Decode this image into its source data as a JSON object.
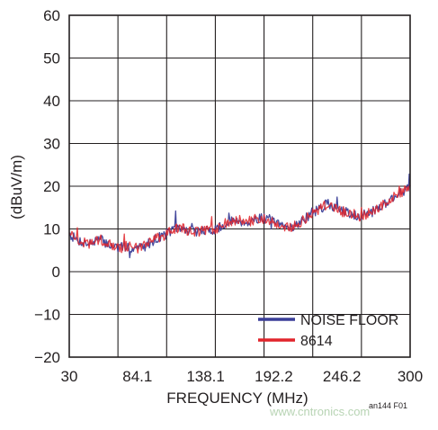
{
  "chart_data": {
    "type": "line",
    "xlabel": "FREQUENCY (MHz)",
    "ylabel": "(dBuV/m)",
    "x_ticks": [
      "30",
      "84.1",
      "138.1",
      "192.2",
      "246.2",
      "300"
    ],
    "y_ticks": [
      "60",
      "50",
      "40",
      "30",
      "20",
      "10",
      "0",
      "−10",
      "−20"
    ],
    "xlim": [
      30,
      300
    ],
    "ylim": [
      -20,
      60
    ],
    "grid": true,
    "legend_position": "bottom-right",
    "series": [
      {
        "name": "NOISE FLOOR",
        "color": "#3b3f98",
        "x": [
          30,
          35,
          40,
          45,
          50,
          55,
          60,
          65,
          70,
          75,
          80,
          85,
          90,
          95,
          100,
          105,
          110,
          115,
          120,
          125,
          130,
          135,
          140,
          145,
          150,
          155,
          160,
          165,
          170,
          175,
          180,
          185,
          190,
          195,
          200,
          205,
          210,
          215,
          220,
          225,
          230,
          235,
          240,
          245,
          250,
          255,
          260,
          265,
          270,
          275,
          280,
          285,
          290,
          295,
          300
        ],
        "y": [
          9,
          7.5,
          7,
          6.5,
          7,
          7.5,
          6.5,
          6,
          5.5,
          6,
          5.5,
          5.5,
          6,
          7,
          8,
          8.5,
          9.5,
          10,
          10,
          9.5,
          9.5,
          9.5,
          9.5,
          10,
          10.5,
          11,
          12,
          12,
          11.5,
          12,
          12.5,
          12.5,
          12,
          11,
          10.5,
          10.5,
          11,
          12,
          13,
          14,
          15,
          16,
          15,
          14,
          14,
          13.5,
          13,
          13.5,
          14,
          15,
          16,
          17,
          18,
          19,
          20
        ]
      },
      {
        "name": "8614",
        "color": "#e1242b",
        "x": [
          30,
          35,
          40,
          45,
          50,
          55,
          60,
          65,
          70,
          75,
          80,
          85,
          90,
          95,
          100,
          105,
          110,
          115,
          120,
          125,
          130,
          135,
          140,
          145,
          150,
          155,
          160,
          165,
          170,
          175,
          180,
          185,
          190,
          195,
          200,
          205,
          210,
          215,
          220,
          225,
          230,
          235,
          240,
          245,
          250,
          255,
          260,
          265,
          270,
          275,
          280,
          285,
          290,
          295,
          300
        ],
        "y": [
          9.5,
          7.5,
          7,
          6.5,
          7,
          7.5,
          6.5,
          6,
          5.5,
          6,
          6,
          5.5,
          6,
          7,
          8,
          8.5,
          9.5,
          10,
          10,
          9.5,
          9.5,
          9.5,
          9.5,
          10,
          10.5,
          11,
          12,
          12,
          11.5,
          12,
          12.5,
          12.5,
          12,
          11,
          10.5,
          10.5,
          11,
          12,
          13,
          14,
          15,
          16,
          15,
          14,
          14,
          13.5,
          13,
          13.5,
          14,
          15,
          16,
          17,
          18,
          19,
          20.5
        ]
      }
    ]
  },
  "figure_id": "an144 F01",
  "watermark": "www.cntronics.com"
}
